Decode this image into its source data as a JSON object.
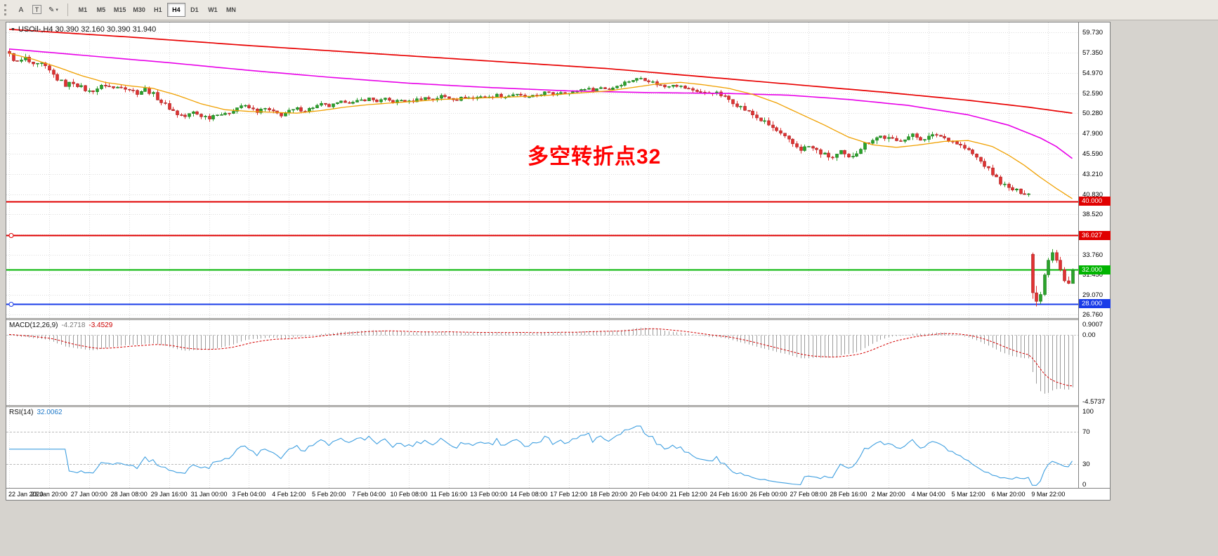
{
  "toolbar": {
    "tools": [
      {
        "name": "cursor-tool",
        "glyph": "A",
        "boxed": false,
        "dropdown": false
      },
      {
        "name": "text-tool",
        "glyph": "T",
        "boxed": true,
        "dropdown": false
      },
      {
        "name": "draw-tool",
        "glyph": "✎",
        "boxed": false,
        "dropdown": true
      }
    ],
    "timeframes": [
      "M1",
      "M5",
      "M15",
      "M30",
      "H1",
      "H4",
      "D1",
      "W1",
      "MN"
    ],
    "active_timeframe": "H4"
  },
  "chart": {
    "title": "USOil-,H4 30.390 32.160 30.390 31.940",
    "annotation": "多空转折点32",
    "price_labels": [
      "59.730",
      "57.350",
      "54.970",
      "52.590",
      "50.280",
      "47.900",
      "45.590",
      "43.210",
      "40.830",
      "38.520",
      "36.140",
      "33.760",
      "31.450",
      "29.070",
      "26.760"
    ],
    "time_labels": [
      "22 Jan 2020",
      "23 Jan 20:00",
      "27 Jan 00:00",
      "28 Jan 08:00",
      "29 Jan 16:00",
      "31 Jan 00:00",
      "3 Feb 04:00",
      "4 Feb 12:00",
      "5 Feb 20:00",
      "7 Feb 04:00",
      "10 Feb 08:00",
      "11 Feb 16:00",
      "13 Feb 00:00",
      "14 Feb 08:00",
      "17 Feb 12:00",
      "18 Feb 20:00",
      "20 Feb 04:00",
      "21 Feb 12:00",
      "24 Feb 16:00",
      "26 Feb 00:00",
      "27 Feb 08:00",
      "28 Feb 16:00",
      "2 Mar 20:00",
      "4 Mar 04:00",
      "5 Mar 12:00",
      "6 Mar 20:00",
      "9 Mar 22:00"
    ],
    "hlines": [
      {
        "price": 40.0,
        "label": "40.000",
        "color_key": "hline_red",
        "width": 2,
        "handle": false
      },
      {
        "price": 36.027,
        "label": "36.027",
        "color_key": "hline_red",
        "width": 2,
        "handle": true
      },
      {
        "price": 32.0,
        "label": "32.000",
        "color_key": "hline_green",
        "width": 2,
        "handle": false
      },
      {
        "price": 28.0,
        "label": "28.000",
        "color_key": "hline_blue",
        "width": 2,
        "handle": true
      }
    ],
    "colors": {
      "up": "#2aa32a",
      "up_border": "#1d7a1d",
      "down": "#e03232",
      "down_border": "#a82424",
      "grid": "#dcdcdc",
      "ma_slow": "#e80000",
      "ma_mid": "#e800e8",
      "ma_fast": "#f0a000",
      "macd_hist": "#9c9c9c",
      "macd_signal": "#d40000",
      "rsi": "#3f9fe0",
      "rsi_level": "#bbbbbb",
      "hline_red": "#e00000",
      "hline_green": "#00b400",
      "hline_blue": "#1a3ce8"
    }
  },
  "chart_data": {
    "type": "candlestick",
    "symbol": "USOil-",
    "timeframe": "H4",
    "ohlc_display": {
      "open": "30.390",
      "high": "32.160",
      "low": "30.390",
      "close": "31.940"
    },
    "y_range": [
      26.35,
      60.9
    ],
    "candle_count": 267,
    "close_keypoints": [
      [
        0,
        57.1
      ],
      [
        2,
        56.2
      ],
      [
        4,
        56.7
      ],
      [
        6,
        55.8
      ],
      [
        8,
        56.0
      ],
      [
        10,
        55.2
      ],
      [
        12,
        54.3
      ],
      [
        14,
        53.6
      ],
      [
        16,
        53.9
      ],
      [
        18,
        53.3
      ],
      [
        20,
        52.8
      ],
      [
        22,
        53.2
      ],
      [
        24,
        53.6
      ],
      [
        26,
        53.2
      ],
      [
        28,
        53.5
      ],
      [
        30,
        53.1
      ],
      [
        32,
        52.7
      ],
      [
        34,
        53.1
      ],
      [
        36,
        52.5
      ],
      [
        38,
        51.6
      ],
      [
        40,
        50.9
      ],
      [
        42,
        50.2
      ],
      [
        44,
        49.9
      ],
      [
        46,
        50.4
      ],
      [
        48,
        50.0
      ],
      [
        50,
        49.8
      ],
      [
        52,
        50.3
      ],
      [
        54,
        50.1
      ],
      [
        56,
        50.7
      ],
      [
        58,
        51.2
      ],
      [
        60,
        50.9
      ],
      [
        62,
        50.5
      ],
      [
        64,
        50.8
      ],
      [
        66,
        50.4
      ],
      [
        68,
        50.1
      ],
      [
        70,
        50.5
      ],
      [
        72,
        50.8
      ],
      [
        74,
        50.6
      ],
      [
        76,
        51.0
      ],
      [
        78,
        51.3
      ],
      [
        80,
        51.1
      ],
      [
        82,
        51.4
      ],
      [
        84,
        51.7
      ],
      [
        86,
        51.5
      ],
      [
        88,
        51.8
      ],
      [
        90,
        52.0
      ],
      [
        92,
        51.7
      ],
      [
        94,
        51.9
      ],
      [
        96,
        51.6
      ],
      [
        98,
        51.8
      ],
      [
        100,
        51.6
      ],
      [
        102,
        51.9
      ],
      [
        104,
        52.1
      ],
      [
        106,
        51.9
      ],
      [
        108,
        52.3
      ],
      [
        110,
        52.1
      ],
      [
        112,
        51.9
      ],
      [
        114,
        52.2
      ],
      [
        116,
        52.0
      ],
      [
        118,
        52.3
      ],
      [
        120,
        52.1
      ],
      [
        122,
        52.4
      ],
      [
        124,
        52.2
      ],
      [
        126,
        52.5
      ],
      [
        128,
        52.3
      ],
      [
        130,
        52.1
      ],
      [
        132,
        52.4
      ],
      [
        134,
        52.7
      ],
      [
        136,
        52.5
      ],
      [
        138,
        52.8
      ],
      [
        140,
        52.6
      ],
      [
        142,
        52.9
      ],
      [
        144,
        53.2
      ],
      [
        146,
        53.0
      ],
      [
        148,
        53.3
      ],
      [
        150,
        53.1
      ],
      [
        152,
        53.5
      ],
      [
        154,
        53.9
      ],
      [
        156,
        54.2
      ],
      [
        158,
        54.4
      ],
      [
        160,
        54.1
      ],
      [
        162,
        53.7
      ],
      [
        164,
        53.4
      ],
      [
        166,
        53.7
      ],
      [
        168,
        53.4
      ],
      [
        170,
        53.1
      ],
      [
        172,
        52.9
      ],
      [
        174,
        52.6
      ],
      [
        176,
        52.8
      ],
      [
        178,
        52.4
      ],
      [
        180,
        51.9
      ],
      [
        182,
        51.3
      ],
      [
        184,
        50.7
      ],
      [
        186,
        50.1
      ],
      [
        188,
        49.5
      ],
      [
        190,
        48.9
      ],
      [
        192,
        48.2
      ],
      [
        194,
        47.4
      ],
      [
        196,
        46.7
      ],
      [
        198,
        46.1
      ],
      [
        200,
        46.4
      ],
      [
        202,
        45.9
      ],
      [
        204,
        45.4
      ],
      [
        206,
        45.1
      ],
      [
        208,
        45.7
      ],
      [
        210,
        45.0
      ],
      [
        212,
        45.8
      ],
      [
        214,
        46.7
      ],
      [
        216,
        47.3
      ],
      [
        218,
        47.6
      ],
      [
        220,
        47.3
      ],
      [
        222,
        47.0
      ],
      [
        224,
        47.4
      ],
      [
        226,
        47.7
      ],
      [
        228,
        47.3
      ],
      [
        230,
        47.5
      ],
      [
        232,
        47.8
      ],
      [
        234,
        47.4
      ],
      [
        236,
        47.0
      ],
      [
        238,
        46.5
      ],
      [
        240,
        45.9
      ],
      [
        242,
        45.1
      ],
      [
        244,
        44.2
      ],
      [
        246,
        43.2
      ],
      [
        248,
        42.2
      ],
      [
        250,
        41.5
      ],
      [
        252,
        41.2
      ],
      [
        254,
        41.0
      ],
      [
        255,
        40.9
      ]
    ],
    "volatility_keypoints": [
      [
        0,
        0.5
      ],
      [
        40,
        0.42
      ],
      [
        80,
        0.32
      ],
      [
        150,
        0.28
      ],
      [
        170,
        0.33
      ],
      [
        190,
        0.5
      ],
      [
        215,
        0.5
      ],
      [
        235,
        0.38
      ],
      [
        255,
        0.45
      ]
    ],
    "tail_start": 256,
    "tail_candles": [
      {
        "o": 33.8,
        "h": 34.0,
        "l": 28.6,
        "c": 29.3
      },
      {
        "o": 29.3,
        "h": 30.1,
        "l": 27.7,
        "c": 28.3
      },
      {
        "o": 28.3,
        "h": 29.4,
        "l": 28.0,
        "c": 29.1
      },
      {
        "o": 29.1,
        "h": 31.6,
        "l": 28.9,
        "c": 31.4
      },
      {
        "o": 31.4,
        "h": 33.4,
        "l": 31.1,
        "c": 33.1
      },
      {
        "o": 33.1,
        "h": 34.4,
        "l": 32.8,
        "c": 34.0
      },
      {
        "o": 34.0,
        "h": 34.3,
        "l": 32.8,
        "c": 33.1
      },
      {
        "o": 33.1,
        "h": 33.5,
        "l": 31.8,
        "c": 32.0
      },
      {
        "o": 32.0,
        "h": 32.3,
        "l": 30.5,
        "c": 30.7
      },
      {
        "o": 30.7,
        "h": 31.2,
        "l": 30.3,
        "c": 30.4
      },
      {
        "o": 30.39,
        "h": 32.16,
        "l": 30.39,
        "c": 31.94
      }
    ],
    "ma_lines": [
      {
        "name": "ma-slow",
        "color_key": "ma_slow",
        "width": 1.7,
        "points": [
          [
            0,
            60.1
          ],
          [
            30,
            59.2
          ],
          [
            60,
            58.2
          ],
          [
            90,
            57.3
          ],
          [
            120,
            56.4
          ],
          [
            150,
            55.5
          ],
          [
            180,
            54.3
          ],
          [
            200,
            53.5
          ],
          [
            220,
            52.7
          ],
          [
            240,
            51.8
          ],
          [
            255,
            51.0
          ],
          [
            266,
            50.3
          ]
        ]
      },
      {
        "name": "ma-mid",
        "color_key": "ma_mid",
        "width": 1.6,
        "points": [
          [
            0,
            57.8
          ],
          [
            20,
            57.0
          ],
          [
            40,
            56.2
          ],
          [
            60,
            55.3
          ],
          [
            80,
            54.5
          ],
          [
            100,
            53.8
          ],
          [
            120,
            53.3
          ],
          [
            140,
            52.9
          ],
          [
            160,
            52.7
          ],
          [
            180,
            52.6
          ],
          [
            195,
            52.4
          ],
          [
            210,
            51.9
          ],
          [
            225,
            51.2
          ],
          [
            240,
            50.1
          ],
          [
            250,
            48.9
          ],
          [
            258,
            47.4
          ],
          [
            262,
            46.4
          ],
          [
            266,
            45.0
          ]
        ]
      },
      {
        "name": "ma-fast",
        "color_key": "ma_fast",
        "width": 1.3,
        "points": [
          [
            0,
            57.3
          ],
          [
            6,
            56.6
          ],
          [
            12,
            55.7
          ],
          [
            18,
            54.7
          ],
          [
            24,
            53.9
          ],
          [
            30,
            53.5
          ],
          [
            36,
            53.2
          ],
          [
            42,
            52.4
          ],
          [
            48,
            51.4
          ],
          [
            54,
            50.7
          ],
          [
            60,
            50.5
          ],
          [
            66,
            50.4
          ],
          [
            72,
            50.3
          ],
          [
            78,
            50.6
          ],
          [
            84,
            51.0
          ],
          [
            90,
            51.3
          ],
          [
            96,
            51.5
          ],
          [
            102,
            51.7
          ],
          [
            108,
            51.9
          ],
          [
            114,
            52.0
          ],
          [
            120,
            52.1
          ],
          [
            126,
            52.2
          ],
          [
            132,
            52.3
          ],
          [
            138,
            52.5
          ],
          [
            144,
            52.7
          ],
          [
            150,
            52.9
          ],
          [
            156,
            53.3
          ],
          [
            162,
            53.7
          ],
          [
            168,
            53.9
          ],
          [
            174,
            53.6
          ],
          [
            180,
            53.2
          ],
          [
            186,
            52.5
          ],
          [
            192,
            51.5
          ],
          [
            198,
            50.2
          ],
          [
            204,
            48.9
          ],
          [
            210,
            47.5
          ],
          [
            216,
            46.6
          ],
          [
            222,
            46.3
          ],
          [
            228,
            46.6
          ],
          [
            234,
            47.0
          ],
          [
            240,
            47.1
          ],
          [
            246,
            46.4
          ],
          [
            250,
            45.4
          ],
          [
            254,
            44.2
          ],
          [
            258,
            42.8
          ],
          [
            262,
            41.5
          ],
          [
            266,
            40.3
          ]
        ]
      }
    ]
  },
  "macd": {
    "label": "MACD(12,26,9)",
    "value_main": "-4.2718",
    "value_signal": "-3.4529",
    "scale_labels": [
      "0.9007",
      "0.00",
      "-4.5737"
    ],
    "range_max": 0.95,
    "range_min": -4.65,
    "params": {
      "fast": 12,
      "slow": 26,
      "signal": 9
    }
  },
  "rsi": {
    "label": "RSI(14)",
    "value": "32.0062",
    "scale_labels": [
      "100",
      "70",
      "30",
      "0"
    ],
    "levels": [
      70,
      30
    ],
    "range": [
      0,
      100
    ],
    "period": 14
  }
}
